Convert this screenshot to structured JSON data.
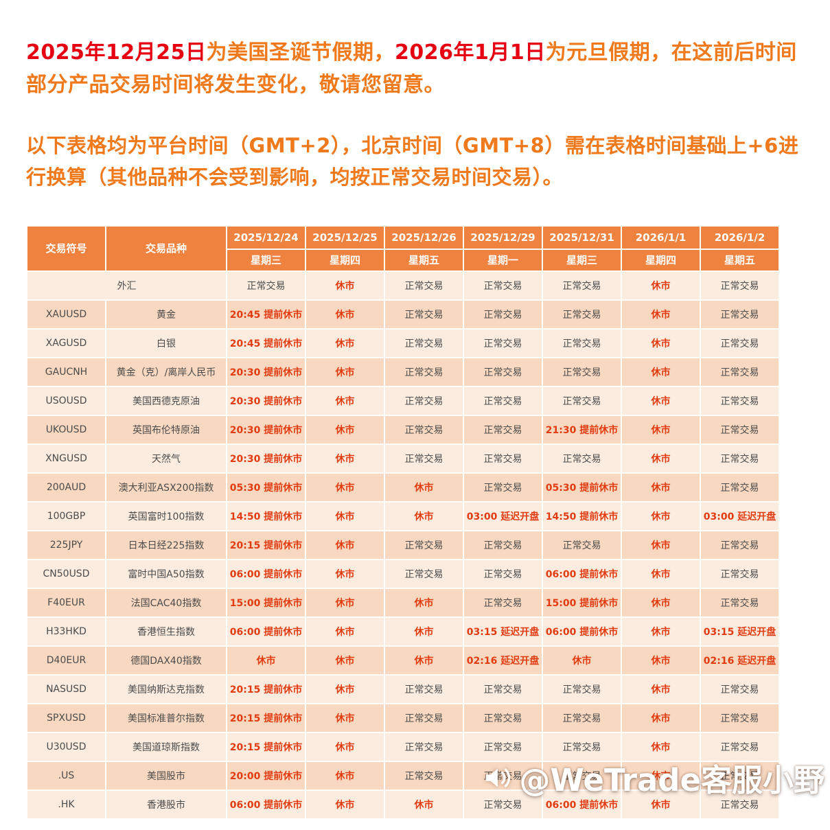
{
  "colors": {
    "header-bg": "#f0823f",
    "row-light": "#fcece0",
    "row-dark": "#f8d8c1",
    "cell-red": "#e23b10",
    "cell-text": "#4b4b4b",
    "highlight-red": "#e60012",
    "paragraph-orange": "#f0791c"
  },
  "intro": {
    "highlight1": "2025年12月25日",
    "text1": "为美国圣诞节假期，",
    "highlight2": "2026年1月1日",
    "text2": "为元旦假期，在这前后时间部分产品交易时间将发生变化，敬请您留意。",
    "note": "以下表格均为平台时间（GMT+2），北京时间（GMT+8）需在表格时间基础上+6进行换算（其他品种不会受到影响，均按正常交易时间交易）。"
  },
  "table": {
    "symbol_header": "交易符号",
    "product_header": "交易品种",
    "dates": [
      "2025/12/24",
      "2025/12/25",
      "2025/12/26",
      "2025/12/29",
      "2025/12/31",
      "2026/1/1",
      "2026/1/2"
    ],
    "weekdays": [
      "星期三",
      "星期四",
      "星期五",
      "星期一",
      "星期三",
      "星期四",
      "星期五"
    ],
    "normal_label": "正常交易",
    "rows": [
      {
        "symbol": "",
        "product": "外汇",
        "cells": [
          "正常交易",
          "休市",
          "正常交易",
          "正常交易",
          "正常交易",
          "休市",
          "正常交易"
        ]
      },
      {
        "symbol": "XAUUSD",
        "product": "黄金",
        "cells": [
          "20:45 提前休市",
          "休市",
          "正常交易",
          "正常交易",
          "正常交易",
          "休市",
          "正常交易"
        ]
      },
      {
        "symbol": "XAGUSD",
        "product": "白银",
        "cells": [
          "20:45 提前休市",
          "休市",
          "正常交易",
          "正常交易",
          "正常交易",
          "休市",
          "正常交易"
        ]
      },
      {
        "symbol": "GAUCNH",
        "product": "黄金（克）/离岸人民币",
        "cells": [
          "20:30 提前休市",
          "休市",
          "正常交易",
          "正常交易",
          "正常交易",
          "休市",
          "正常交易"
        ]
      },
      {
        "symbol": "USOUSD",
        "product": "美国西德克原油",
        "cells": [
          "20:30 提前休市",
          "休市",
          "正常交易",
          "正常交易",
          "正常交易",
          "休市",
          "正常交易"
        ]
      },
      {
        "symbol": "UKOUSD",
        "product": "英国布伦特原油",
        "cells": [
          "20:30 提前休市",
          "休市",
          "正常交易",
          "正常交易",
          "21:30 提前休市",
          "休市",
          "正常交易"
        ]
      },
      {
        "symbol": "XNGUSD",
        "product": "天然气",
        "cells": [
          "20:30 提前休市",
          "休市",
          "正常交易",
          "正常交易",
          "正常交易",
          "休市",
          "正常交易"
        ]
      },
      {
        "symbol": "200AUD",
        "product": "澳大利亚ASX200指数",
        "cells": [
          "05:30 提前休市",
          "休市",
          "休市",
          "正常交易",
          "05:30 提前休市",
          "休市",
          "正常交易"
        ]
      },
      {
        "symbol": "100GBP",
        "product": "英国富时100指数",
        "cells": [
          "14:50 提前休市",
          "休市",
          "休市",
          "03:00 延迟开盘",
          "14:50 提前休市",
          "休市",
          "03:00 延迟开盘"
        ]
      },
      {
        "symbol": "225JPY",
        "product": "日本日经225指数",
        "cells": [
          "20:15 提前休市",
          "休市",
          "正常交易",
          "正常交易",
          "正常交易",
          "休市",
          "正常交易"
        ]
      },
      {
        "symbol": "CN50USD",
        "product": "富时中国A50指数",
        "cells": [
          "06:00 提前休市",
          "休市",
          "正常交易",
          "正常交易",
          "06:00 提前休市",
          "休市",
          "正常交易"
        ]
      },
      {
        "symbol": "F40EUR",
        "product": "法国CAC40指数",
        "cells": [
          "15:00 提前休市",
          "休市",
          "休市",
          "正常交易",
          "15:00 提前休市",
          "休市",
          "正常交易"
        ]
      },
      {
        "symbol": "H33HKD",
        "product": "香港恒生指数",
        "cells": [
          "06:00 提前休市",
          "休市",
          "休市",
          "03:15 延迟开盘",
          "06:00 提前休市",
          "休市",
          "03:15 延迟开盘"
        ]
      },
      {
        "symbol": "D40EUR",
        "product": "德国DAX40指数",
        "cells": [
          "休市",
          "休市",
          "休市",
          "02:16 延迟开盘",
          "休市",
          "休市",
          "02:16 延迟开盘"
        ]
      },
      {
        "symbol": "NASUSD",
        "product": "美国纳斯达克指数",
        "cells": [
          "20:15 提前休市",
          "休市",
          "正常交易",
          "正常交易",
          "正常交易",
          "休市",
          "正常交易"
        ]
      },
      {
        "symbol": "SPXUSD",
        "product": "美国标准普尔指数",
        "cells": [
          "20:15 提前休市",
          "休市",
          "正常交易",
          "正常交易",
          "正常交易",
          "休市",
          "正常交易"
        ]
      },
      {
        "symbol": "U30USD",
        "product": "美国道琼斯指数",
        "cells": [
          "20:15 提前休市",
          "休市",
          "正常交易",
          "正常交易",
          "正常交易",
          "休市",
          "正常交易"
        ]
      },
      {
        "symbol": ".US",
        "product": "美国股市",
        "cells": [
          "20:00 提前休市",
          "休市",
          "正常交易",
          "正常交易",
          "正常交易",
          "休市",
          "正常交易"
        ]
      },
      {
        "symbol": ".HK",
        "product": "香港股市",
        "cells": [
          "06:00 提前休市",
          "休市",
          "休市",
          "正常交易",
          "06:00 提前休市",
          "休市",
          "正常交易"
        ]
      }
    ]
  },
  "watermark": {
    "text": "@WeTrade客服小野"
  }
}
